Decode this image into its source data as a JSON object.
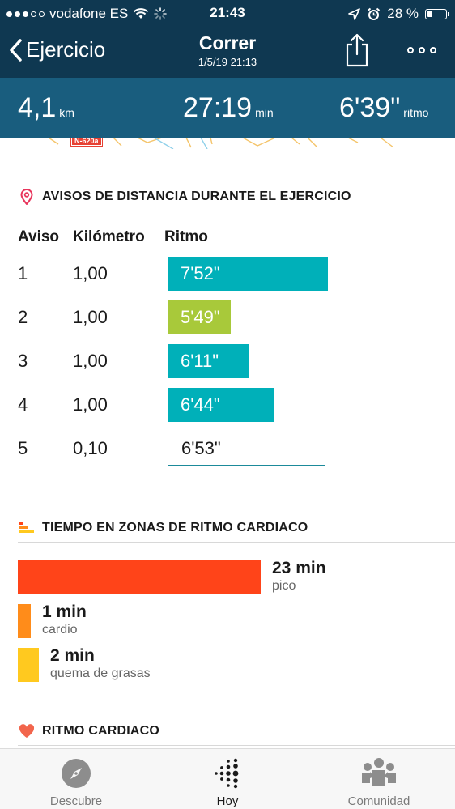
{
  "status_bar": {
    "carrier": "vodafone ES",
    "time": "21:43",
    "battery": "28 %",
    "battery_level": 0.28
  },
  "nav": {
    "back_label": "Ejercicio",
    "title": "Correr",
    "subtitle": "1/5/19 21:13"
  },
  "stats": {
    "distance": {
      "value": "4,1",
      "unit": "km"
    },
    "duration": {
      "value": "27:19",
      "unit": "min"
    },
    "pace": {
      "value": "6'39\"",
      "unit": "ritmo"
    }
  },
  "map": {
    "road_label": "N-620a"
  },
  "splits": {
    "title": "AVISOS DE DISTANCIA DURANTE EL EJERCICIO",
    "columns": [
      "Aviso",
      "Kilómetro",
      "Ritmo"
    ],
    "rows": [
      {
        "aviso": "1",
        "km": "1,00",
        "pace": "7'52\"",
        "pace_seconds": 472,
        "color": "#00b0b9",
        "style": "filled",
        "best": false
      },
      {
        "aviso": "2",
        "km": "1,00",
        "pace": "5'49\"",
        "pace_seconds": 349,
        "color": "#a8c93a",
        "style": "filled",
        "best": true
      },
      {
        "aviso": "3",
        "km": "1,00",
        "pace": "6'11\"",
        "pace_seconds": 371,
        "color": "#00b0b9",
        "style": "filled",
        "best": false
      },
      {
        "aviso": "4",
        "km": "1,00",
        "pace": "6'44\"",
        "pace_seconds": 404,
        "color": "#00b0b9",
        "style": "filled",
        "best": false
      },
      {
        "aviso": "5",
        "km": "0,10",
        "pace": "6'53\"",
        "pace_seconds": 413,
        "color": "#1b8a9a",
        "style": "outline",
        "best": false
      }
    ]
  },
  "zones": {
    "title": "TIEMPO EN ZONAS DE RITMO CARDIACO",
    "items": [
      {
        "value": "23 min",
        "label": "pico",
        "minutes": 23,
        "color": "#ff4419"
      },
      {
        "value": "1 min",
        "label": "cardio",
        "minutes": 1,
        "color": "#ff8c1a"
      },
      {
        "value": "2 min",
        "label": "quema de grasas",
        "minutes": 2,
        "color": "#ffc91f"
      }
    ]
  },
  "heart_rate": {
    "title": "RITMO CARDIACO",
    "icon_color": "#f2654c"
  },
  "tabs": [
    {
      "label": "Descubre",
      "icon": "compass-icon",
      "active": false
    },
    {
      "label": "Hoy",
      "icon": "fitbit-dots-icon",
      "active": true
    },
    {
      "label": "Comunidad",
      "icon": "community-icon",
      "active": false
    }
  ],
  "colors": {
    "header_bg": "#0f3851",
    "stats_bg": "#195d7e",
    "accent_teal": "#00b0b9",
    "best_green": "#a8c93a",
    "location_pin": "#e8355c"
  }
}
